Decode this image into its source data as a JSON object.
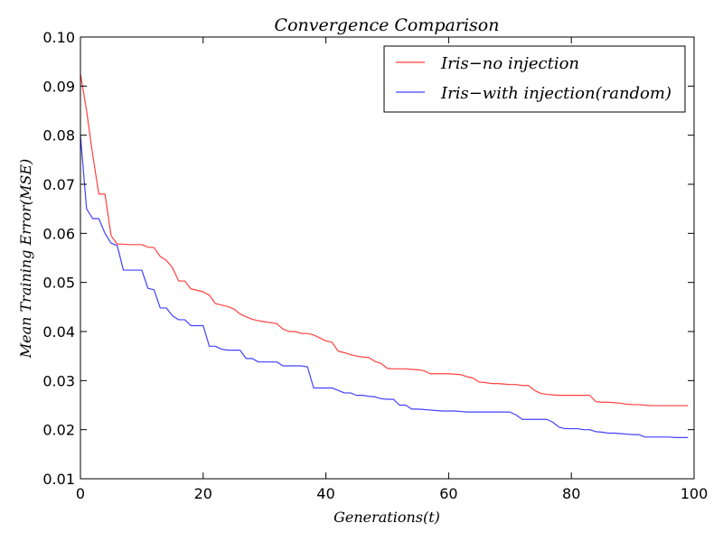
{
  "chart_data": {
    "type": "line",
    "title": "Convergence Comparison",
    "xlabel": "Generations(t)",
    "ylabel": "Mean Training Error(MSE)",
    "xlim": [
      0,
      100
    ],
    "ylim": [
      0.01,
      0.1
    ],
    "xticks": [
      0,
      20,
      40,
      60,
      80,
      100
    ],
    "yticks": [
      0.01,
      0.02,
      0.03,
      0.04,
      0.05,
      0.06,
      0.07,
      0.08,
      0.09,
      0.1
    ],
    "xtick_labels": [
      "0",
      "20",
      "40",
      "60",
      "80",
      "100"
    ],
    "ytick_labels": [
      "0.01",
      "0.02",
      "0.03",
      "0.04",
      "0.05",
      "0.06",
      "0.07",
      "0.08",
      "0.09",
      "0.10"
    ],
    "grid": false,
    "legend_position": "top-right",
    "x": [
      0,
      1,
      2,
      3,
      4,
      5,
      6,
      7,
      8,
      9,
      10,
      11,
      12,
      13,
      14,
      15,
      16,
      17,
      18,
      19,
      20,
      21,
      22,
      23,
      24,
      25,
      26,
      27,
      28,
      29,
      30,
      31,
      32,
      33,
      34,
      35,
      36,
      37,
      38,
      39,
      40,
      41,
      42,
      43,
      44,
      45,
      46,
      47,
      48,
      49,
      50,
      51,
      52,
      53,
      54,
      55,
      56,
      57,
      58,
      59,
      60,
      61,
      62,
      63,
      64,
      65,
      66,
      67,
      68,
      69,
      70,
      71,
      72,
      73,
      74,
      75,
      76,
      77,
      78,
      79,
      80,
      81,
      82,
      83,
      84,
      85,
      86,
      87,
      88,
      89,
      90,
      91,
      92,
      93,
      94,
      95,
      96,
      97,
      98,
      99
    ],
    "series": [
      {
        "name": "Iris−no injection",
        "color": "#ff0000",
        "values": [
          0.0925,
          0.085,
          0.076,
          0.068,
          0.068,
          0.0595,
          0.0578,
          0.0578,
          0.0577,
          0.0577,
          0.0577,
          0.0572,
          0.0571,
          0.0553,
          0.0545,
          0.053,
          0.0503,
          0.0503,
          0.0487,
          0.0484,
          0.0481,
          0.0474,
          0.0457,
          0.0454,
          0.0451,
          0.0446,
          0.0436,
          0.043,
          0.0425,
          0.0422,
          0.042,
          0.0418,
          0.0416,
          0.0405,
          0.04,
          0.04,
          0.0396,
          0.0396,
          0.0393,
          0.0387,
          0.0381,
          0.0378,
          0.036,
          0.0357,
          0.0353,
          0.035,
          0.0348,
          0.0347,
          0.0339,
          0.0335,
          0.0325,
          0.0324,
          0.0324,
          0.0324,
          0.0323,
          0.0322,
          0.032,
          0.0314,
          0.0314,
          0.0314,
          0.0314,
          0.0313,
          0.0312,
          0.0308,
          0.0305,
          0.0297,
          0.0296,
          0.0294,
          0.0294,
          0.0293,
          0.0292,
          0.0292,
          0.029,
          0.029,
          0.028,
          0.0274,
          0.0272,
          0.0271,
          0.027,
          0.027,
          0.027,
          0.027,
          0.027,
          0.027,
          0.0257,
          0.0256,
          0.0256,
          0.0255,
          0.0254,
          0.0252,
          0.0251,
          0.0251,
          0.025,
          0.0249,
          0.0249,
          0.0249,
          0.0249,
          0.0249,
          0.0249,
          0.0249
        ]
      },
      {
        "name": "Iris−with injection(random)",
        "color": "#0000ff",
        "values": [
          0.08,
          0.065,
          0.063,
          0.063,
          0.06,
          0.058,
          0.0575,
          0.0525,
          0.0525,
          0.0525,
          0.0525,
          0.0488,
          0.0485,
          0.0448,
          0.0448,
          0.0432,
          0.0424,
          0.0424,
          0.0412,
          0.0412,
          0.0412,
          0.037,
          0.037,
          0.0364,
          0.0362,
          0.0362,
          0.0362,
          0.0345,
          0.0345,
          0.0338,
          0.0338,
          0.0338,
          0.0338,
          0.033,
          0.033,
          0.033,
          0.033,
          0.0328,
          0.0285,
          0.0285,
          0.0285,
          0.0285,
          0.028,
          0.0275,
          0.0275,
          0.027,
          0.027,
          0.0268,
          0.0267,
          0.0263,
          0.0262,
          0.0262,
          0.025,
          0.025,
          0.0242,
          0.0242,
          0.0241,
          0.024,
          0.0239,
          0.0238,
          0.0238,
          0.0238,
          0.0237,
          0.0236,
          0.0236,
          0.0236,
          0.0236,
          0.0236,
          0.0236,
          0.0236,
          0.0236,
          0.023,
          0.0221,
          0.0221,
          0.0221,
          0.0221,
          0.0221,
          0.0215,
          0.0205,
          0.0202,
          0.0202,
          0.0202,
          0.02,
          0.02,
          0.0196,
          0.0195,
          0.0193,
          0.0193,
          0.0192,
          0.0191,
          0.019,
          0.019,
          0.0185,
          0.0185,
          0.0185,
          0.0185,
          0.0185,
          0.0184,
          0.0184,
          0.0184
        ]
      }
    ]
  }
}
